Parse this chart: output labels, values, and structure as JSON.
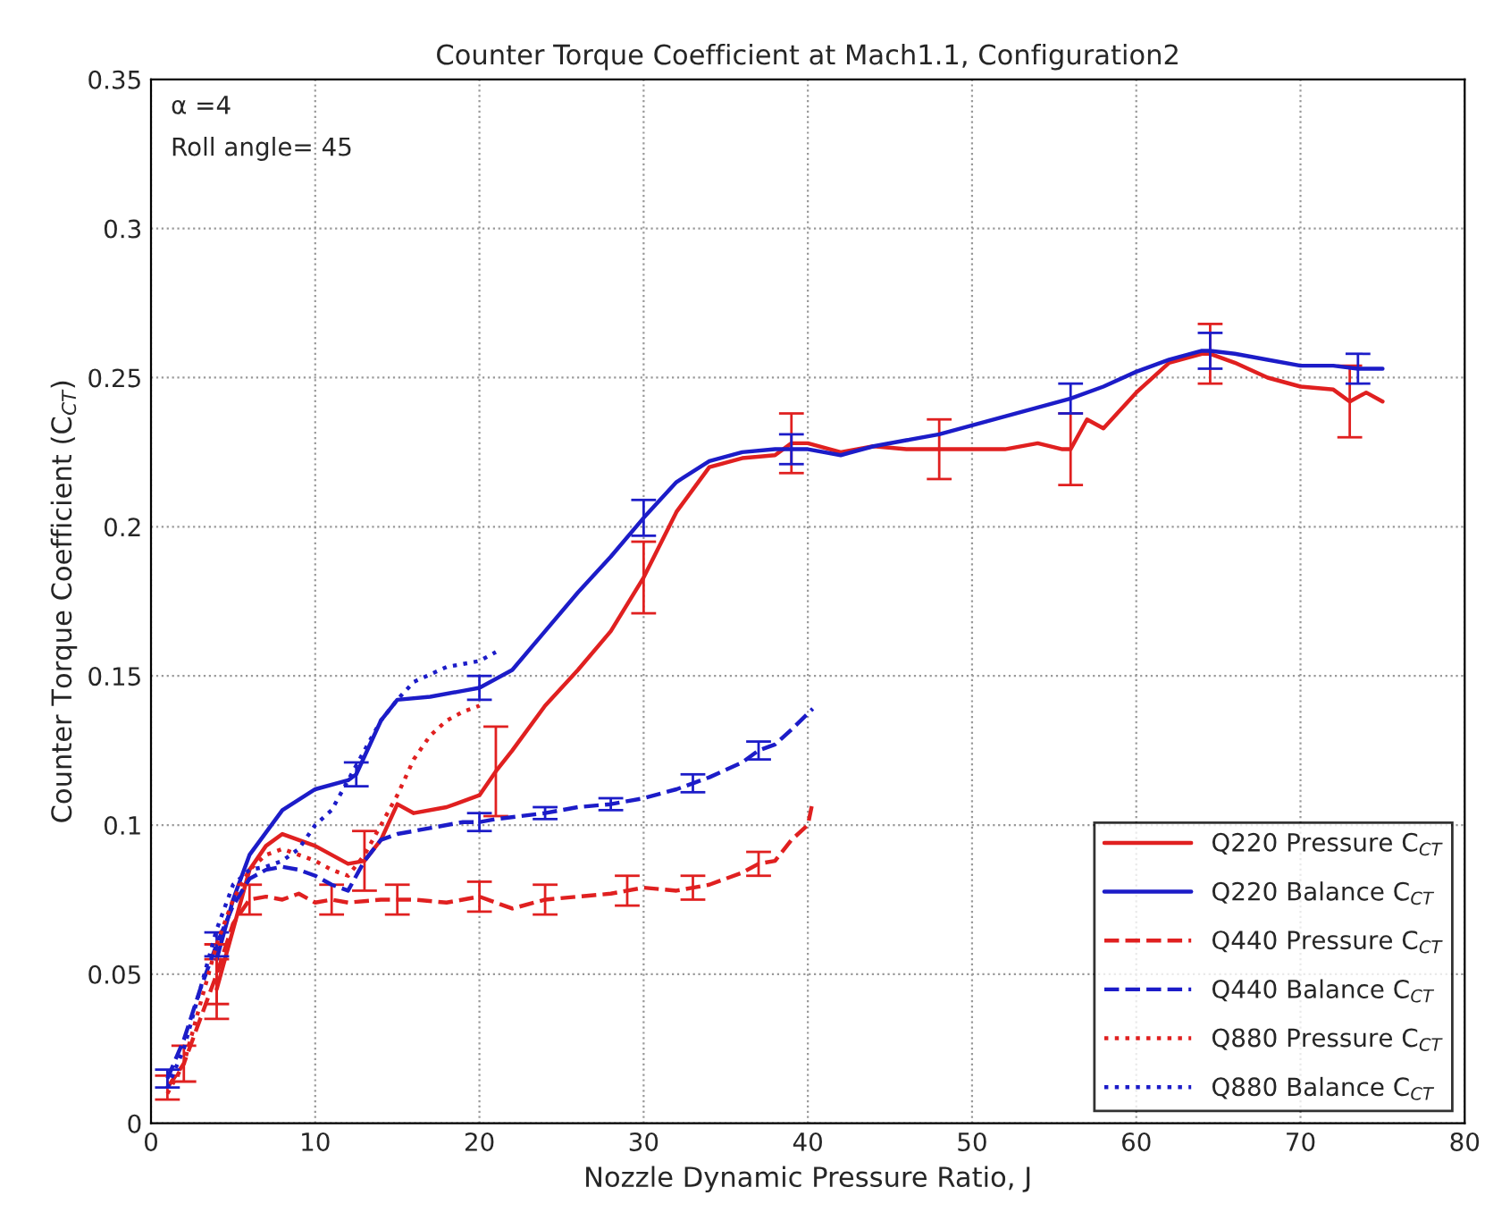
{
  "chart_data": {
    "type": "line",
    "title": "Counter Torque Coefficient at Mach1.1, Configuration2",
    "xlabel": "Nozzle Dynamic Pressure Ratio, J",
    "ylabel": "Counter Torque Coefficient (C$_{CT}$)",
    "annotations": [
      "α =4",
      "Roll angle= 45"
    ],
    "xlim": [
      0,
      80
    ],
    "ylim": [
      0,
      0.35
    ],
    "xticks": [
      0,
      10,
      20,
      30,
      40,
      50,
      60,
      70,
      80
    ],
    "yticks": [
      0,
      0.05,
      0.1,
      0.15,
      0.2,
      0.25,
      0.3,
      0.35
    ],
    "grid": true,
    "legend": "lower right",
    "marker": "none",
    "series": [
      {
        "name": "Q220 Pressure C$_{CT}$",
        "color": "#e02020",
        "line_style": "solid",
        "x": [
          4,
          5,
          6,
          7,
          8,
          10,
          12,
          13,
          14,
          15,
          16,
          18,
          20,
          21,
          22,
          24,
          26,
          28,
          30,
          32,
          34,
          36,
          38,
          39,
          40,
          42,
          44,
          46,
          48,
          50,
          52,
          54,
          55.5,
          56,
          57,
          58,
          60,
          62,
          64,
          64.5,
          66,
          68,
          70,
          72,
          73,
          74,
          75
        ],
        "values": [
          0.045,
          0.065,
          0.085,
          0.093,
          0.097,
          0.093,
          0.087,
          0.088,
          0.095,
          0.107,
          0.104,
          0.106,
          0.11,
          0.118,
          0.125,
          0.14,
          0.152,
          0.165,
          0.183,
          0.205,
          0.22,
          0.223,
          0.224,
          0.228,
          0.228,
          0.225,
          0.227,
          0.226,
          0.226,
          0.226,
          0.226,
          0.228,
          0.226,
          0.226,
          0.236,
          0.233,
          0.245,
          0.255,
          0.258,
          0.258,
          0.255,
          0.25,
          0.247,
          0.246,
          0.242,
          0.245,
          0.242
        ],
        "errors": [
          0.01,
          null,
          null,
          null,
          null,
          null,
          null,
          0.01,
          null,
          null,
          null,
          null,
          null,
          0.015,
          null,
          null,
          null,
          null,
          0.012,
          null,
          null,
          null,
          null,
          0.01,
          null,
          null,
          null,
          null,
          0.01,
          null,
          null,
          null,
          null,
          0.012,
          null,
          null,
          null,
          null,
          null,
          0.01,
          null,
          null,
          null,
          null,
          0.012,
          null,
          null
        ]
      },
      {
        "name": "Q220 Balance C$_{CT}$",
        "color": "#1c1cc8",
        "line_style": "solid",
        "x": [
          4,
          5,
          6,
          8,
          10,
          12,
          12.5,
          14,
          15,
          17,
          19,
          20,
          22,
          24,
          26,
          28,
          30,
          32,
          34,
          36,
          38,
          39,
          40,
          42,
          44,
          46,
          48,
          50,
          52,
          54,
          56,
          58,
          60,
          62,
          64,
          64.5,
          66,
          68,
          70,
          72,
          73.5,
          75
        ],
        "values": [
          0.055,
          0.075,
          0.09,
          0.105,
          0.112,
          0.115,
          0.117,
          0.135,
          0.142,
          0.143,
          0.145,
          0.146,
          0.152,
          0.165,
          0.178,
          0.19,
          0.203,
          0.215,
          0.222,
          0.225,
          0.226,
          0.226,
          0.226,
          0.224,
          0.227,
          0.229,
          0.231,
          0.234,
          0.237,
          0.24,
          0.243,
          0.247,
          0.252,
          0.256,
          0.259,
          0.259,
          0.258,
          0.256,
          0.254,
          0.254,
          0.253,
          0.253
        ],
        "errors": [
          null,
          null,
          null,
          null,
          null,
          null,
          0.004,
          null,
          null,
          null,
          null,
          0.004,
          null,
          null,
          null,
          null,
          0.006,
          null,
          null,
          null,
          null,
          0.005,
          null,
          null,
          null,
          null,
          null,
          null,
          null,
          null,
          0.005,
          null,
          null,
          null,
          null,
          0.006,
          null,
          null,
          null,
          null,
          0.005,
          null
        ]
      },
      {
        "name": "Q440 Pressure C$_{CT}$",
        "color": "#e02020",
        "line_style": "dashed",
        "x": [
          1,
          2,
          3,
          4,
          5,
          6,
          7,
          8,
          9,
          10,
          11,
          12,
          14,
          15,
          16,
          18,
          20,
          22,
          24,
          26,
          28,
          29,
          30,
          32,
          33,
          34,
          36,
          37,
          38,
          39,
          40,
          40.3
        ],
        "values": [
          0.012,
          0.02,
          0.035,
          0.05,
          0.067,
          0.075,
          0.076,
          0.075,
          0.077,
          0.074,
          0.075,
          0.074,
          0.075,
          0.075,
          0.075,
          0.074,
          0.076,
          0.072,
          0.075,
          0.076,
          0.077,
          0.078,
          0.079,
          0.078,
          0.079,
          0.08,
          0.084,
          0.087,
          0.088,
          0.095,
          0.1,
          0.108
        ],
        "errors": [
          0.004,
          0.006,
          null,
          0.01,
          null,
          0.005,
          null,
          null,
          null,
          null,
          0.005,
          null,
          null,
          0.005,
          null,
          null,
          0.005,
          null,
          0.005,
          null,
          null,
          0.005,
          null,
          null,
          0.004,
          null,
          null,
          0.004,
          null,
          null,
          null,
          null
        ]
      },
      {
        "name": "Q440 Balance C$_{CT}$",
        "color": "#1c1cc8",
        "line_style": "dashed",
        "x": [
          1,
          2,
          3,
          4,
          5,
          6,
          7,
          8,
          9,
          10,
          11,
          12,
          13,
          14,
          15,
          17,
          19,
          20,
          21,
          24,
          26,
          28,
          30,
          32,
          33,
          34,
          36,
          37,
          38,
          39,
          40.3
        ],
        "values": [
          0.015,
          0.028,
          0.045,
          0.06,
          0.073,
          0.082,
          0.085,
          0.086,
          0.085,
          0.083,
          0.08,
          0.078,
          0.088,
          0.095,
          0.097,
          0.099,
          0.101,
          0.101,
          0.102,
          0.104,
          0.106,
          0.107,
          0.109,
          0.112,
          0.114,
          0.116,
          0.121,
          0.125,
          0.127,
          0.132,
          0.139
        ],
        "errors": [
          0.003,
          null,
          null,
          0.004,
          null,
          null,
          null,
          null,
          null,
          null,
          null,
          null,
          null,
          null,
          null,
          null,
          null,
          0.003,
          null,
          0.002,
          null,
          0.002,
          null,
          null,
          0.003,
          null,
          null,
          0.003,
          null,
          null,
          null
        ]
      },
      {
        "name": "Q880 Pressure C$_{CT}$",
        "color": "#e02020",
        "line_style": "dotted",
        "x": [
          1,
          2,
          3,
          4,
          5,
          6,
          7,
          8,
          9,
          10,
          11,
          12,
          13,
          14,
          15,
          16,
          17,
          18,
          19,
          20
        ],
        "values": [
          0.01,
          0.02,
          0.04,
          0.06,
          0.075,
          0.085,
          0.09,
          0.092,
          0.09,
          0.088,
          0.085,
          0.083,
          0.09,
          0.1,
          0.11,
          0.122,
          0.13,
          0.135,
          0.138,
          0.14
        ]
      },
      {
        "name": "Q880 Balance C$_{CT}$",
        "color": "#1c1cc8",
        "line_style": "dotted",
        "x": [
          1,
          2,
          3,
          4,
          5,
          6,
          7,
          8,
          9,
          10,
          11,
          12,
          13,
          14,
          15,
          16,
          18,
          20,
          21
        ],
        "values": [
          0.012,
          0.025,
          0.045,
          0.065,
          0.08,
          0.085,
          0.086,
          0.088,
          0.092,
          0.1,
          0.105,
          0.115,
          0.125,
          0.135,
          0.142,
          0.148,
          0.153,
          0.155,
          0.158
        ]
      }
    ]
  }
}
